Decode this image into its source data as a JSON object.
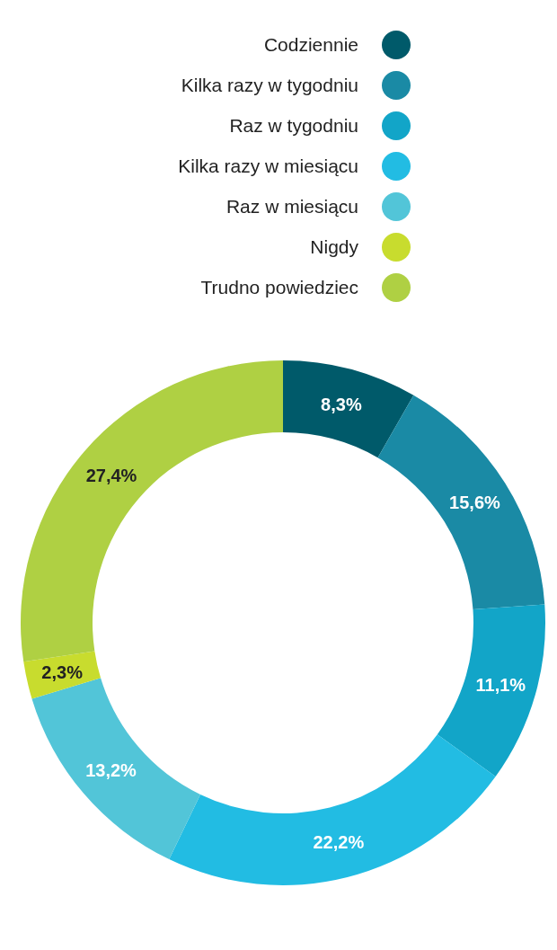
{
  "chart_data": {
    "type": "donut",
    "categories": [
      "Codziennie",
      "Kilka razy w tygodniu",
      "Raz w tygodniu",
      "Kilka razy w miesiącu",
      "Raz w miesiącu",
      "Nigdy",
      "Trudno powiedziec"
    ],
    "values": [
      8.3,
      15.6,
      11.1,
      22.2,
      13.2,
      2.3,
      27.4
    ],
    "colors": [
      "#005a6a",
      "#1a8aa5",
      "#12a5c8",
      "#22bce3",
      "#52c5d8",
      "#c8dc2e",
      "#afd043"
    ],
    "value_labels": [
      "8,3%",
      "15,6%",
      "11,1%",
      "22,2%",
      "13,2%",
      "2,3%",
      "27,4%"
    ],
    "legend": "top right"
  }
}
